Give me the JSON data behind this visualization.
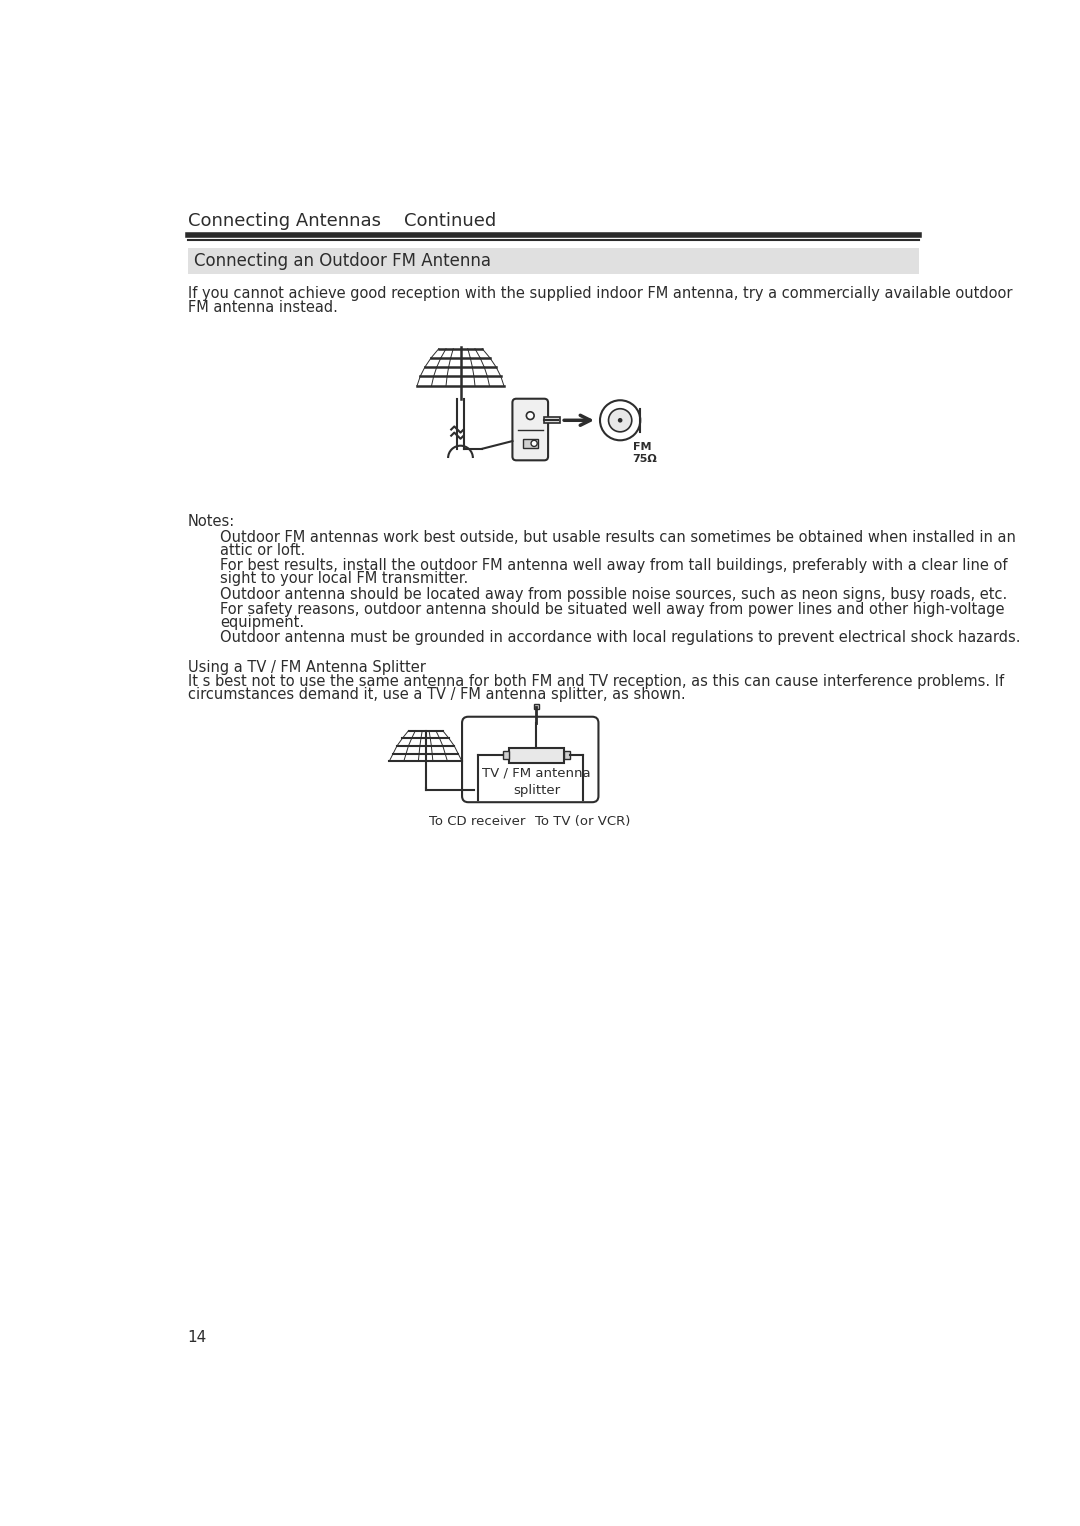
{
  "bg_color": "#ffffff",
  "text_color": "#2d2d2d",
  "line_color": "#2d2d2d",
  "header_title": "Connecting Antennas    Continued",
  "section_title": "Connecting an Outdoor FM Antenna",
  "section_bg": "#e0e0e0",
  "intro_text": "If you cannot achieve good reception with the supplied indoor FM antenna, try a commercially available outdoor\nFM antenna instead.",
  "notes_label": "Notes:",
  "notes": [
    "Outdoor FM antennas work best outside, but usable results can sometimes be obtained when installed in an\nattic or loft.",
    "For best results, install the outdoor FM antenna well away from tall buildings, preferably with a clear line of\nsight to your local FM transmitter.",
    "Outdoor antenna should be located away from possible noise sources, such as neon signs, busy roads, etc.",
    "For safety reasons, outdoor antenna should be situated well away from power lines and other high-voltage\nequipment.",
    "Outdoor antenna must be grounded in accordance with local regulations to prevent electrical shock hazards."
  ],
  "splitter_title": "Using a TV / FM Antenna Splitter",
  "splitter_text": "It s best not to use the same antenna for both FM and TV reception, as this can cause interference problems. If\ncircumstances demand it, use a TV / FM antenna splitter, as shown.",
  "splitter_label": "TV / FM antenna\nsplitter",
  "cd_label": "To CD receiver",
  "tv_label": "To TV (or VCR)",
  "fm_label": "FM\n75Ω",
  "page_number": "14",
  "font_family": "DejaVu Sans",
  "header_fontsize": 13,
  "section_fontsize": 12,
  "body_fontsize": 10.5,
  "notes_fontsize": 10.5,
  "page_num_fontsize": 11
}
